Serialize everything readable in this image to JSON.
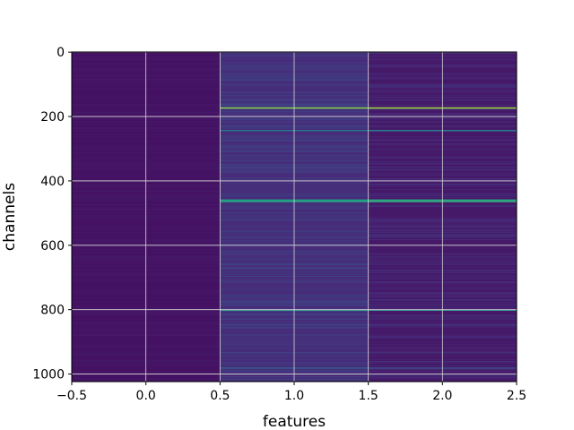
{
  "chart_data": {
    "type": "heatmap",
    "xlabel": "features",
    "ylabel": "channels",
    "xlim": [
      -0.5,
      2.5
    ],
    "ylim": [
      1023.5,
      -0.5
    ],
    "x_ticks": [
      -0.5,
      0.0,
      0.5,
      1.0,
      1.5,
      2.0,
      2.5
    ],
    "x_tick_labels": [
      "−0.5",
      "0.0",
      "0.5",
      "1.0",
      "1.5",
      "2.0",
      "2.5"
    ],
    "y_ticks": [
      0,
      200,
      400,
      600,
      800,
      1000
    ],
    "y_tick_labels": [
      "0",
      "200",
      "400",
      "600",
      "800",
      "1000"
    ],
    "grid": true,
    "colormap": "viridis",
    "columns": [
      {
        "feature": 0,
        "base_value": 0.05
      },
      {
        "feature": 1,
        "base_value": 0.13
      },
      {
        "feature": 2,
        "base_value": 0.07
      }
    ],
    "highlighted_channels": [
      {
        "channel": 172,
        "values": [
          0.05,
          0.82,
          0.86
        ]
      },
      {
        "channel": 242,
        "values": [
          0.05,
          0.4,
          0.42
        ]
      },
      {
        "channel": 458,
        "values": [
          0.05,
          0.55,
          0.58
        ]
      },
      {
        "channel": 462,
        "values": [
          0.05,
          0.62,
          0.66
        ]
      },
      {
        "channel": 800,
        "values": [
          0.05,
          0.55,
          0.52
        ]
      },
      {
        "channel": 980,
        "values": [
          0.05,
          0.3,
          0.25
        ]
      }
    ],
    "colors": {
      "background": "#ffffff",
      "grid": "#d8d8d8"
    }
  }
}
